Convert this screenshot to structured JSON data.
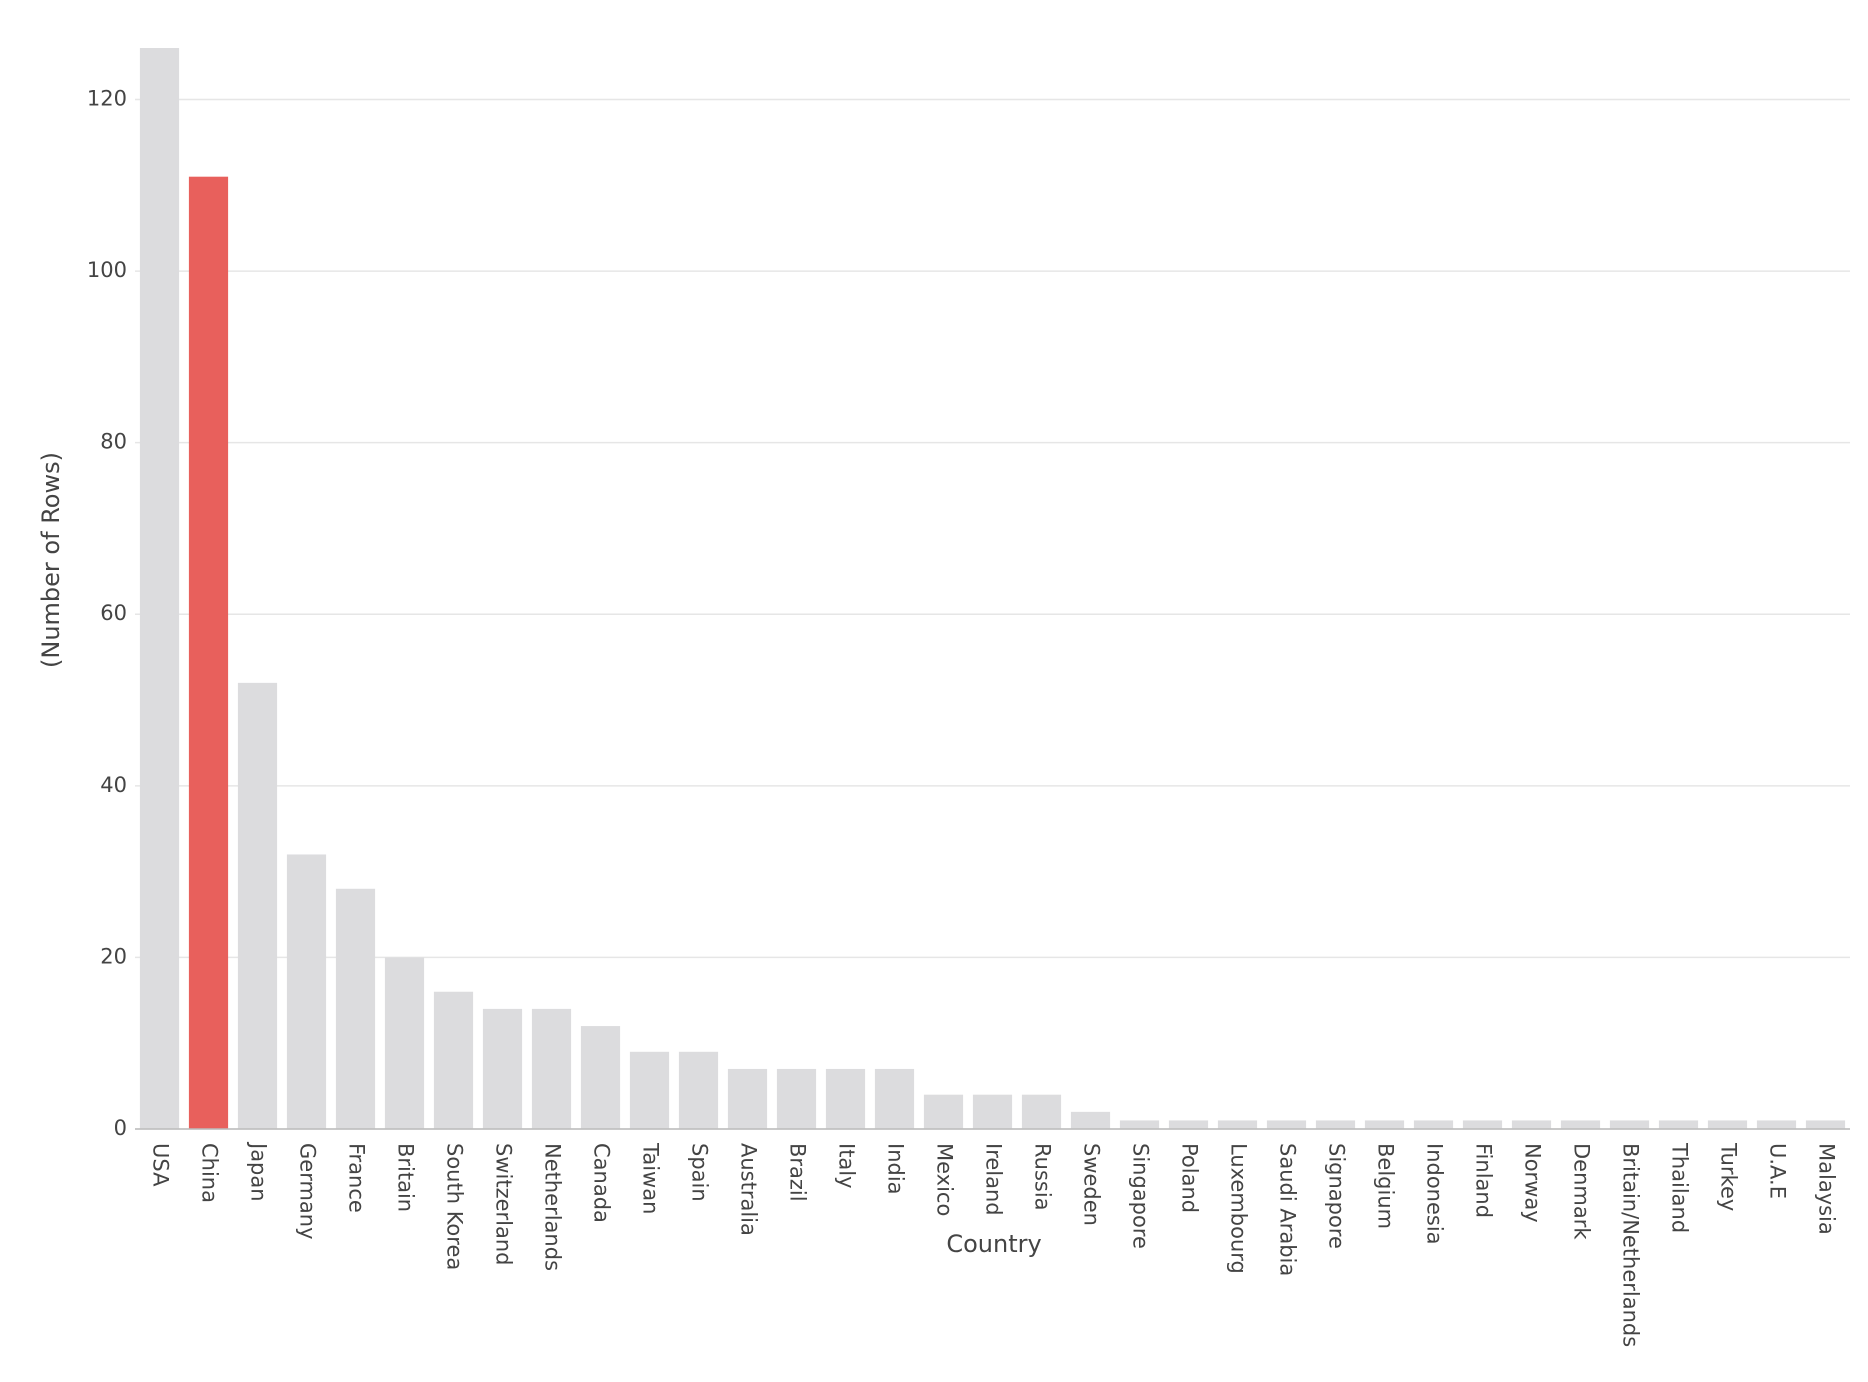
{
  "chart_data": {
    "type": "bar",
    "x_label": "Country",
    "y_label": "(Number of Rows)",
    "categories": [
      "USA",
      "China",
      "Japan",
      "Germany",
      "France",
      "Britain",
      "South Korea",
      "Switzerland",
      "Netherlands",
      "Canada",
      "Taiwan",
      "Spain",
      "Australia",
      "Brazil",
      "Italy",
      "India",
      "Mexico",
      "Ireland",
      "Russia",
      "Sweden",
      "Singapore",
      "Poland",
      "Luxembourg",
      "Saudi Arabia",
      "Signapore",
      "Belgium",
      "Indonesia",
      "Finland",
      "Norway",
      "Denmark",
      "Britain/Netherlands",
      "Thailand",
      "Turkey",
      "U.A.E",
      "Malaysia"
    ],
    "values": [
      126,
      111,
      52,
      32,
      28,
      20,
      16,
      14,
      14,
      12,
      9,
      9,
      7,
      7,
      7,
      7,
      4,
      4,
      4,
      2,
      1,
      1,
      1,
      1,
      1,
      1,
      1,
      1,
      1,
      1,
      1,
      1,
      1,
      1,
      1
    ],
    "colors": [
      "#dcdcde",
      "#e8605c",
      "#dcdcde",
      "#dcdcde",
      "#dcdcde",
      "#dcdcde",
      "#dcdcde",
      "#dcdcde",
      "#dcdcde",
      "#dcdcde",
      "#dcdcde",
      "#dcdcde",
      "#dcdcde",
      "#dcdcde",
      "#dcdcde",
      "#dcdcde",
      "#dcdcde",
      "#dcdcde",
      "#dcdcde",
      "#dcdcde",
      "#dcdcde",
      "#dcdcde",
      "#dcdcde",
      "#dcdcde",
      "#dcdcde",
      "#dcdcde",
      "#dcdcde",
      "#dcdcde",
      "#dcdcde",
      "#dcdcde",
      "#dcdcde",
      "#dcdcde",
      "#dcdcde",
      "#dcdcde",
      "#dcdcde"
    ],
    "ylim": [
      0,
      126
    ],
    "yticks": [
      0,
      20,
      40,
      60,
      80,
      100,
      120
    ],
    "grid": true
  }
}
